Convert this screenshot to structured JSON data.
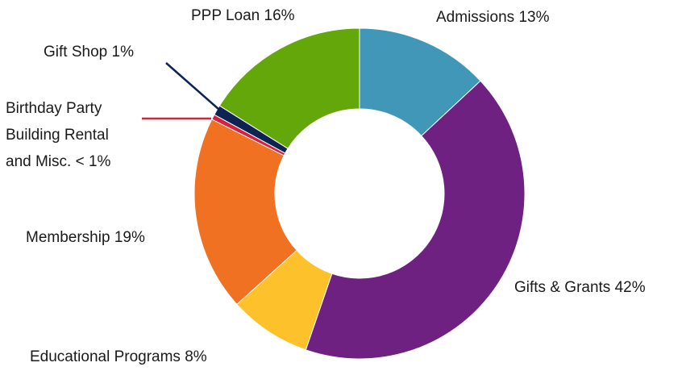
{
  "chart_data": {
    "type": "donut",
    "categories": [
      "Admissions",
      "Gifts & Grants",
      "Educational  Programs",
      "Membership",
      "Birthday Party Building Rental and Misc.",
      "Gift Shop",
      "PPP Loan"
    ],
    "values": [
      13,
      42,
      8,
      19,
      0.5,
      1,
      16
    ],
    "value_labels": [
      "13%",
      "42%",
      "8%",
      "19%",
      "< 1%",
      "1%",
      "16%"
    ],
    "colors": [
      "#4097b7",
      "#6e2181",
      "#fdc22b",
      "#f07122",
      "#d4213d",
      "#0d2452",
      "#64a70b"
    ]
  }
}
